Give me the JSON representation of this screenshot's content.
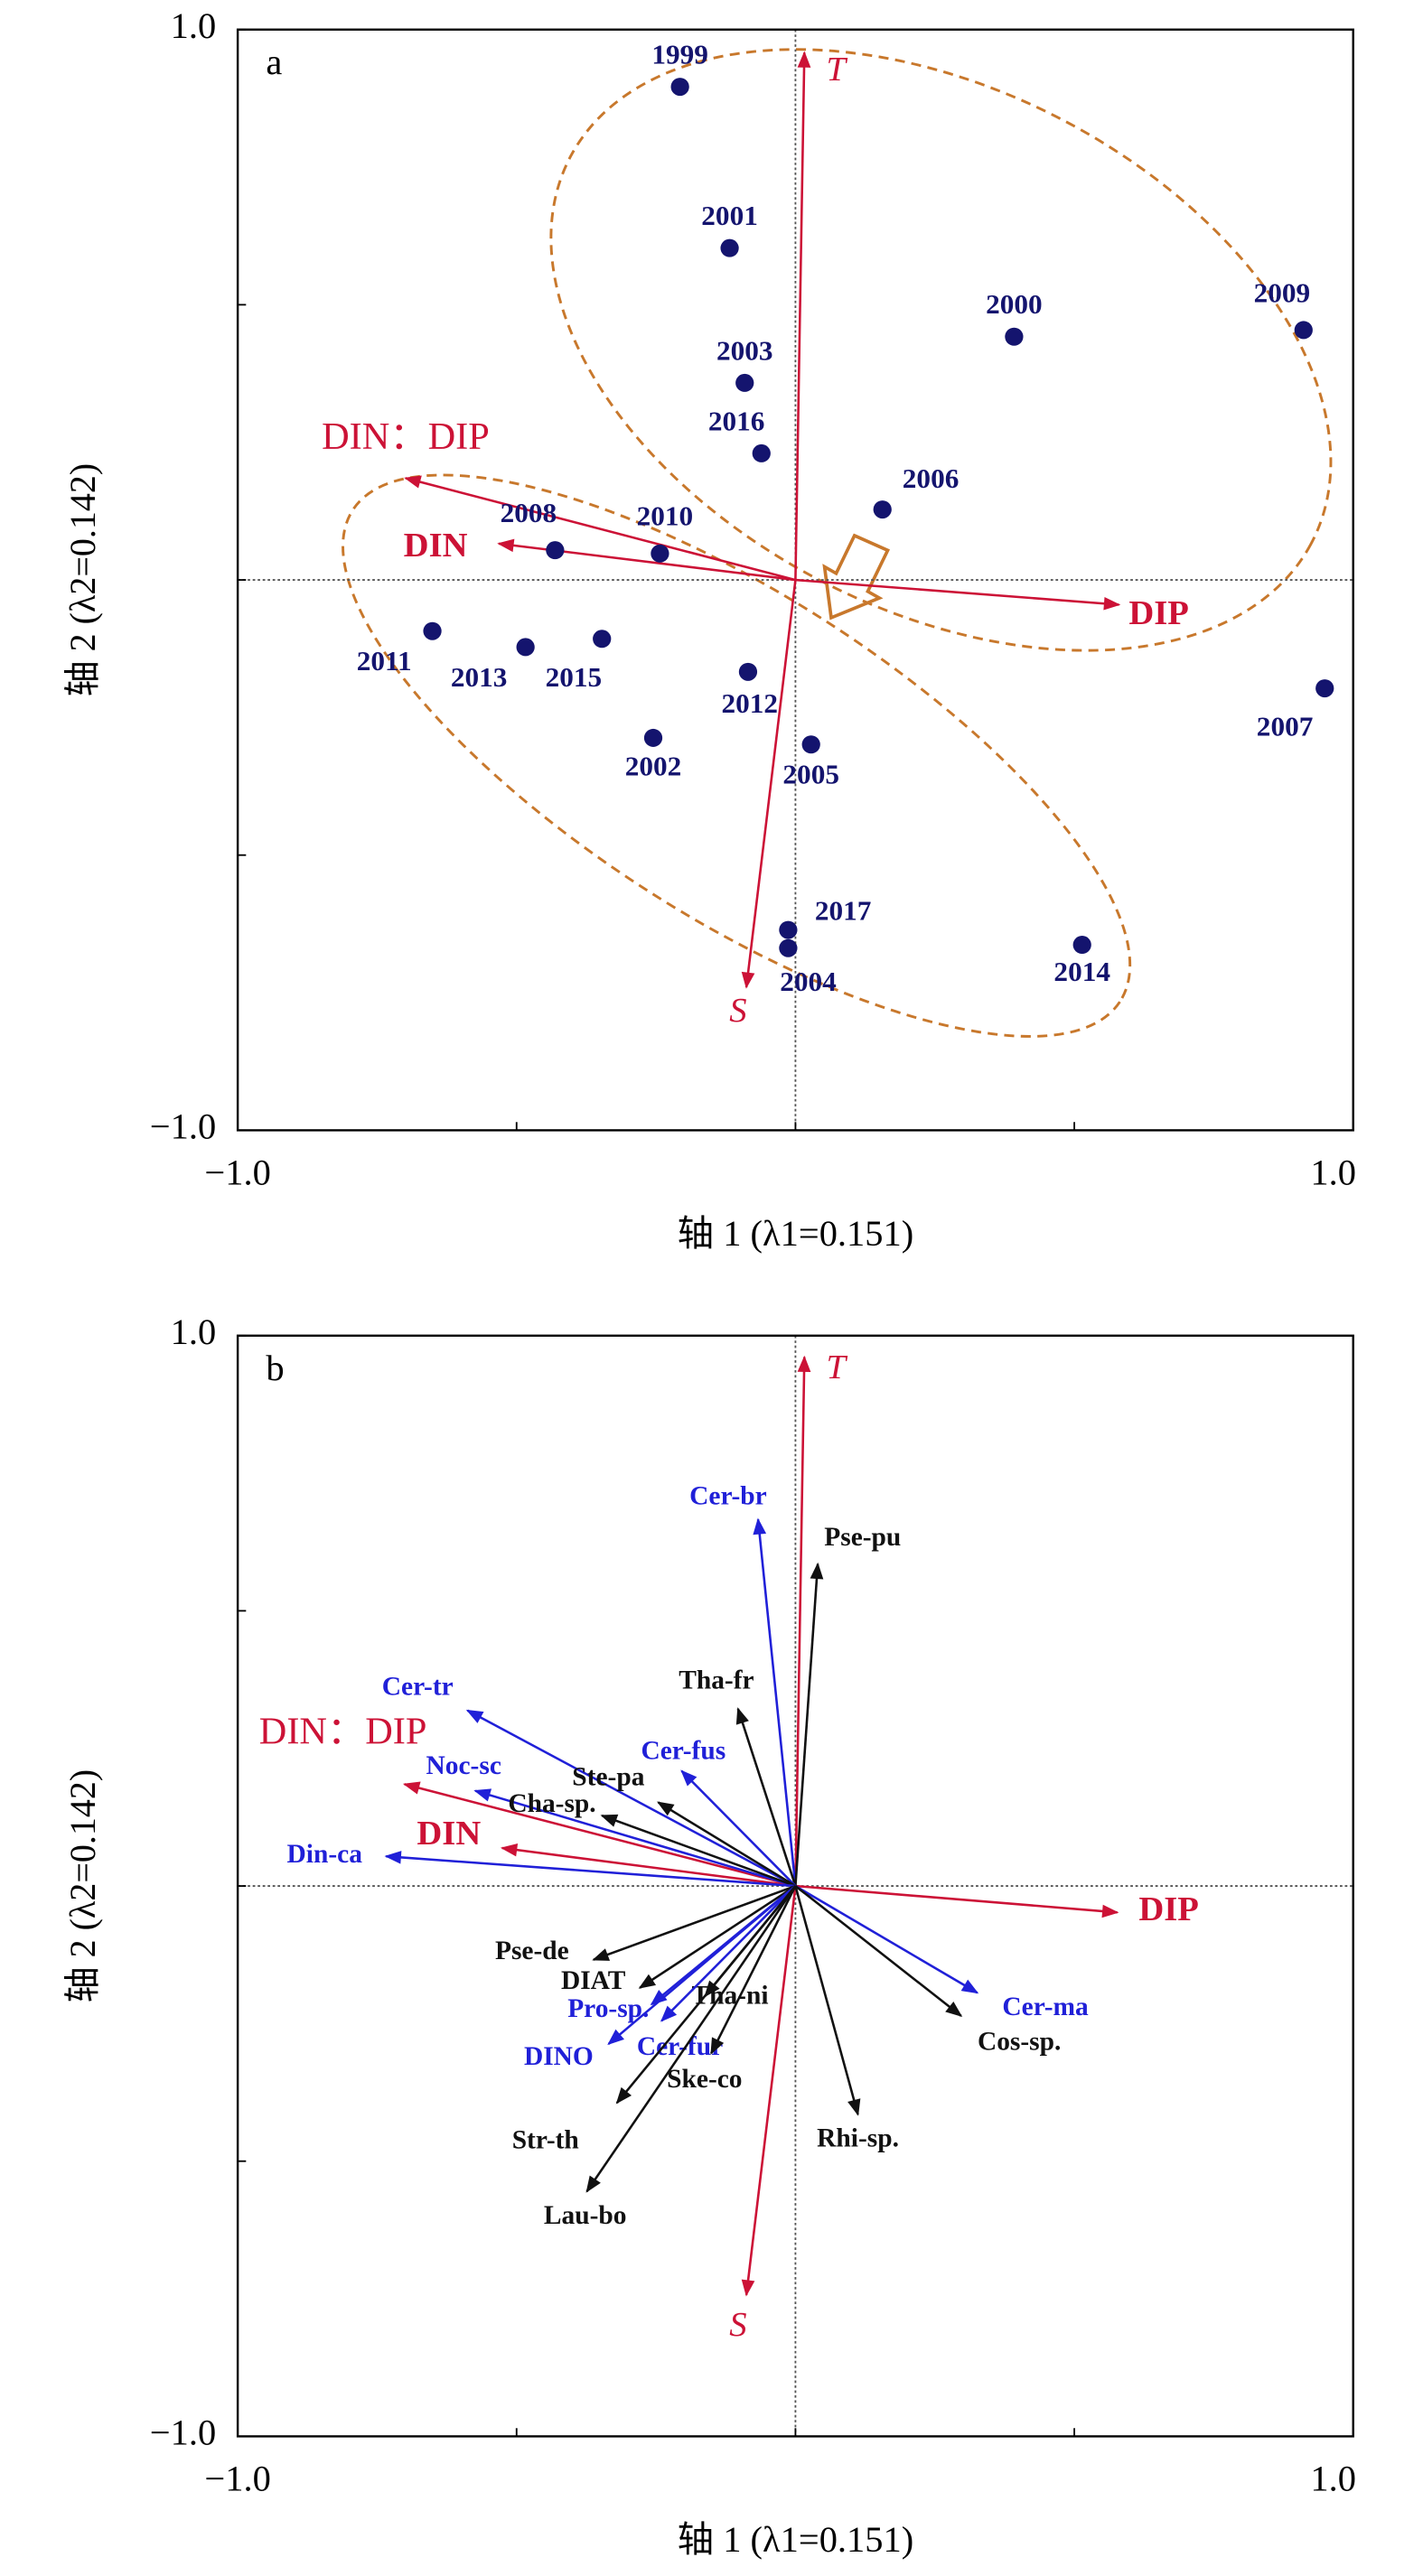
{
  "chart_data": [
    {
      "type": "biplot",
      "label": "a",
      "xlabel": "轴 1 (λ1=0.151)",
      "ylabel": "轴 2 (λ2=0.142)",
      "xlim": [
        -1,
        1
      ],
      "ylim": [
        -1,
        1
      ],
      "xticks": [
        {
          "value": -1,
          "label": "−1.0"
        },
        {
          "value": 1,
          "label": "1.0"
        }
      ],
      "yticks": [
        {
          "value": -1,
          "label": "−1.0"
        },
        {
          "value": 1,
          "label": "1.0"
        }
      ],
      "minor_ticks": [
        -0.5,
        0,
        0.5
      ],
      "zero_lines": true,
      "points": {
        "color": "#14146e",
        "labels": [
          "1999",
          "2001",
          "2000",
          "2009",
          "2003",
          "2016",
          "2006",
          "2008",
          "2010",
          "2011",
          "2013",
          "2015",
          "2012",
          "2002",
          "2005",
          "2007",
          "2017",
          "2004",
          "2014"
        ],
        "x": [
          -0.207,
          -0.118,
          0.392,
          0.911,
          -0.091,
          -0.061,
          0.156,
          -0.431,
          -0.243,
          -0.651,
          -0.484,
          -0.347,
          -0.085,
          -0.255,
          0.028,
          0.949,
          -0.013,
          -0.013,
          0.514
        ],
        "y": [
          0.896,
          0.603,
          0.442,
          0.454,
          0.358,
          0.23,
          0.128,
          0.054,
          0.048,
          -0.093,
          -0.122,
          -0.107,
          -0.167,
          -0.287,
          -0.299,
          -0.197,
          -0.636,
          -0.669,
          -0.663
        ]
      },
      "vectors": [
        {
          "label": "T",
          "x": 0.016,
          "y": 0.958,
          "color": "#cc1236",
          "style": "italic"
        },
        {
          "label": "S",
          "x": -0.088,
          "y": -0.74,
          "color": "#cc1236",
          "style": "italic"
        },
        {
          "label": "DIP",
          "x": 0.58,
          "y": -0.045,
          "color": "#cc1236",
          "style": "bold"
        },
        {
          "label": "DIN",
          "x": -0.532,
          "y": 0.066,
          "color": "#cc1236",
          "style": "bold"
        },
        {
          "label": "DIN：DIP",
          "x": -0.699,
          "y": 0.185,
          "color": "#cc1236",
          "style": "normal"
        }
      ]
    },
    {
      "type": "biplot",
      "label": "b",
      "xlabel": "轴 1 (λ1=0.151)",
      "ylabel": "轴 2 (λ2=0.142)",
      "xlim": [
        -1,
        1
      ],
      "ylim": [
        -1,
        1
      ],
      "xticks": [
        {
          "value": -1,
          "label": "−1.0"
        },
        {
          "value": 1,
          "label": "1.0"
        }
      ],
      "yticks": [
        {
          "value": -1,
          "label": "−1.0"
        },
        {
          "value": 1,
          "label": "1.0"
        }
      ],
      "minor_ticks": [
        -0.5,
        0,
        0.5
      ],
      "zero_lines": true,
      "vectors": [
        {
          "label": "T",
          "x": 0.016,
          "y": 0.961,
          "color": "#cc1236",
          "style": "italic"
        },
        {
          "label": "S",
          "x": -0.088,
          "y": -0.743,
          "color": "#cc1236",
          "style": "italic"
        },
        {
          "label": "DIP",
          "x": 0.577,
          "y": -0.048,
          "color": "#cc1236",
          "style": "bold"
        },
        {
          "label": "DIN",
          "x": -0.526,
          "y": 0.069,
          "color": "#cc1236",
          "style": "bold"
        },
        {
          "label": "DIN：DIP",
          "x": -0.701,
          "y": 0.185,
          "color": "#cc1236",
          "style": "normal"
        },
        {
          "label": "Cer-br",
          "x": -0.067,
          "y": 0.666,
          "color": "#2020d8",
          "style": "bold"
        },
        {
          "label": "Pse-pu",
          "x": 0.04,
          "y": 0.585,
          "color": "#111111",
          "style": "bold"
        },
        {
          "label": "Tha-fr",
          "x": -0.103,
          "y": 0.322,
          "color": "#111111",
          "style": "bold"
        },
        {
          "label": "Cer-tr",
          "x": -0.588,
          "y": 0.319,
          "color": "#2020d8",
          "style": "bold"
        },
        {
          "label": "Cer-fus",
          "x": -0.204,
          "y": 0.209,
          "color": "#2020d8",
          "style": "bold"
        },
        {
          "label": "Noc-sc",
          "x": -0.574,
          "y": 0.173,
          "color": "#2020d8",
          "style": "bold"
        },
        {
          "label": "Ste-pa",
          "x": -0.246,
          "y": 0.152,
          "color": "#111111",
          "style": "bold"
        },
        {
          "label": "Cha-sp.",
          "x": -0.347,
          "y": 0.128,
          "color": "#111111",
          "style": "bold"
        },
        {
          "label": "Din-ca",
          "x": -0.734,
          "y": 0.054,
          "color": "#2020d8",
          "style": "bold"
        },
        {
          "label": "Cer-ma",
          "x": 0.326,
          "y": -0.194,
          "color": "#2020d8",
          "style": "bold"
        },
        {
          "label": "Cos-sp.",
          "x": 0.297,
          "y": -0.236,
          "color": "#111111",
          "style": "bold"
        },
        {
          "label": "Rhi-sp.",
          "x": 0.112,
          "y": -0.415,
          "color": "#111111",
          "style": "bold"
        },
        {
          "label": "Pse-de",
          "x": -0.362,
          "y": -0.134,
          "color": "#111111",
          "style": "bold"
        },
        {
          "label": "DIAT",
          "x": -0.279,
          "y": -0.185,
          "color": "#111111",
          "style": "bold"
        },
        {
          "label": "Pro-sp.",
          "x": -0.258,
          "y": -0.215,
          "color": "#2020d8",
          "style": "bold"
        },
        {
          "label": "DINO",
          "x": -0.335,
          "y": -0.287,
          "color": "#2020d8",
          "style": "bold"
        },
        {
          "label": "Tha-ni",
          "x": -0.162,
          "y": -0.2,
          "color": "#111111",
          "style": "bold"
        },
        {
          "label": "Cer-fur",
          "x": -0.24,
          "y": -0.245,
          "color": "#2020d8",
          "style": "bold"
        },
        {
          "label": "Ske-co",
          "x": -0.151,
          "y": -0.304,
          "color": "#111111",
          "style": "bold"
        },
        {
          "label": "Str-th",
          "x": -0.32,
          "y": -0.394,
          "color": "#111111",
          "style": "bold"
        },
        {
          "label": "Lau-bo",
          "x": -0.374,
          "y": -0.555,
          "color": "#111111",
          "style": "bold"
        }
      ]
    }
  ]
}
